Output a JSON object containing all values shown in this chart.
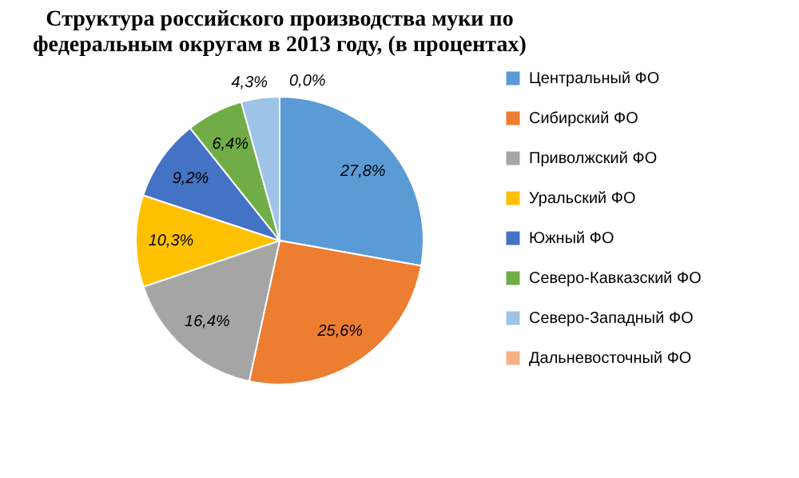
{
  "chart_data": {
    "type": "pie",
    "title": "Структура российского производства муки по федеральным округам в 2013 году, (в процентах)",
    "categories": [
      "Центральный ФО",
      "Сибирский ФО",
      "Приволжский ФО",
      "Уральский ФО",
      "Южный ФО",
      "Северо-Кавказский ФО",
      "Северо-Западный ФО",
      "Дальневосточный ФО"
    ],
    "values": [
      27.8,
      25.6,
      16.4,
      10.3,
      9.2,
      6.4,
      4.3,
      0.0
    ],
    "value_labels": [
      "27,8%",
      "25,6%",
      "16,4%",
      "10,3%",
      "9,2%",
      "6,4%",
      "4,3%",
      "0,0%"
    ],
    "colors": [
      "#5b9bd5",
      "#ed7d31",
      "#a5a5a5",
      "#ffc000",
      "#4472c4",
      "#70ad47",
      "#9dc3e6",
      "#f4b183"
    ],
    "legend": "right"
  }
}
